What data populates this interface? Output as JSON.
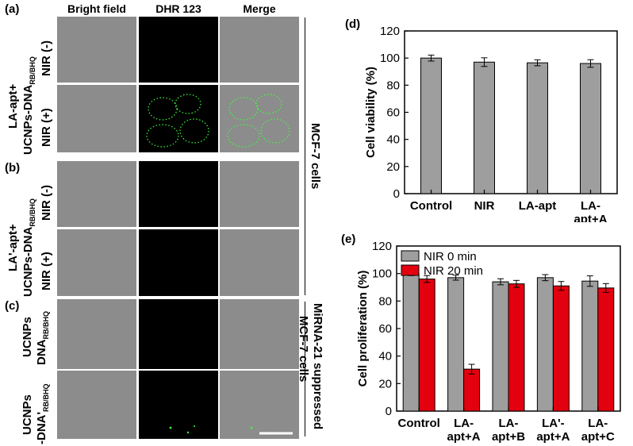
{
  "panel_labels": {
    "a": "(a)",
    "b": "(b)",
    "c": "(c)",
    "d": "(d)",
    "e": "(e)"
  },
  "columns": [
    "Bright field",
    "DHR 123",
    "Merge"
  ],
  "groups": {
    "a": {
      "line1": "LA-apt+",
      "line2_main": "UCNPs-DNA",
      "line2_sub": "RB/BHQ"
    },
    "b": {
      "line1": "LA'-apt+",
      "line2_main": "UCNPs-DNA",
      "line2_sub": "RB/BHQ"
    },
    "c1": {
      "line1": "UCNPs",
      "line2_main": "DNA",
      "line2_sub": "RB/BHQ"
    },
    "c2": {
      "line1": "UCNPs",
      "line2_main": "-DNA'",
      "line2_sub": "RB/BHQ"
    }
  },
  "row_labels": {
    "nir_minus": "NIR (-)",
    "nir_plus": "NIR (+)"
  },
  "side_labels": {
    "mcf7": "MCF-7 cells",
    "suppressed_line1": "MiRNA-21 suppressed",
    "suppressed_line2": "MCF-7 cells"
  },
  "colors": {
    "bar_gray": "#9e9e9e",
    "bar_red": "#e3000f",
    "fluor_green": "#3cff3c"
  },
  "chart_data": [
    {
      "id": "d",
      "type": "bar",
      "ylabel": "Cell viability (%)",
      "ylim": [
        0,
        120
      ],
      "yticks": [
        0,
        20,
        40,
        60,
        80,
        100,
        120
      ],
      "categories": [
        "Control",
        "NIR",
        "LA-apt",
        "LA-\napt+A"
      ],
      "values": [
        100,
        97,
        96.5,
        96
      ],
      "errors": [
        2.2,
        3.2,
        2.2,
        2.8
      ]
    },
    {
      "id": "e",
      "type": "bar",
      "ylabel": "Cell proliferation (%)",
      "ylim": [
        0,
        120
      ],
      "yticks": [
        0,
        20,
        40,
        60,
        80,
        100,
        120
      ],
      "categories": [
        "Control",
        "LA-\napt+A",
        "LA-\napt+B",
        "LA'-\napt+A",
        "LA-\napt+C"
      ],
      "series": [
        {
          "name": "NIR 0 min",
          "values": [
            100,
            97,
            94,
            97,
            94.5
          ],
          "errors": [
            1.5,
            1.8,
            2.2,
            2.2,
            3.8
          ]
        },
        {
          "name": "NIR 20 min",
          "values": [
            96,
            30.5,
            92.5,
            91,
            89.5
          ],
          "errors": [
            2.5,
            3.5,
            2.5,
            3.2,
            3.2
          ]
        }
      ],
      "legend": "top-left"
    }
  ]
}
